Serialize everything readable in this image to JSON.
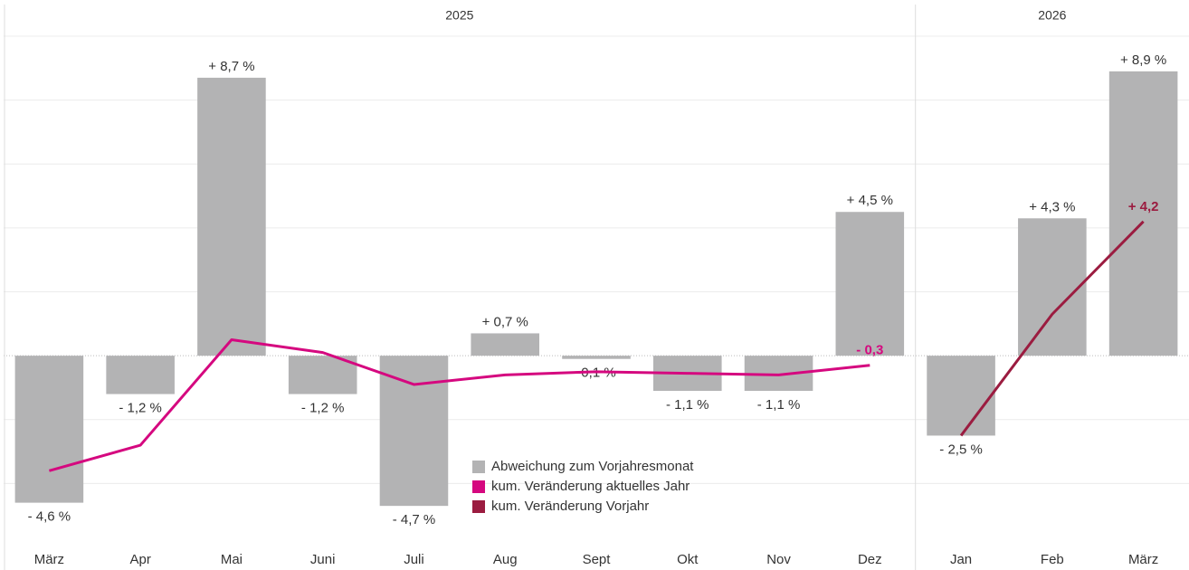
{
  "chart_data": {
    "type": "bar",
    "groups": [
      {
        "label": "2025",
        "span": 10
      },
      {
        "label": "2026",
        "span": 3
      }
    ],
    "categories": [
      "März",
      "Apr",
      "Mai",
      "Juni",
      "Juli",
      "Aug",
      "Sept",
      "Okt",
      "Nov",
      "Dez",
      "Jan",
      "Feb",
      "März"
    ],
    "series": [
      {
        "name": "Abweichung zum Vorjahresmonat",
        "type": "bar",
        "color": "#b3b3b4",
        "values": [
          -4.6,
          -1.2,
          8.7,
          -1.2,
          -4.7,
          0.7,
          -0.1,
          -1.1,
          -1.1,
          4.5,
          -2.5,
          4.3,
          8.9
        ],
        "value_labels": [
          "- 4,6 %",
          "- 1,2 %",
          "+ 8,7 %",
          "- 1,2 %",
          "- 4,7 %",
          "+ 0,7 %",
          "-0,1 %",
          "- 1,1 %",
          "- 1,1 %",
          "+ 4,5 %",
          "- 2,5 %",
          "+ 4,3 %",
          "+ 8,9 %"
        ]
      },
      {
        "name": "kum. Veränderung aktuelles Jahr",
        "type": "line",
        "color": "#d5087f",
        "values": [
          -3.6,
          -2.8,
          0.5,
          0.1,
          -0.9,
          -0.6,
          -0.5,
          -0.55,
          -0.6,
          -0.3,
          null,
          null,
          null
        ],
        "value_labels": [
          null,
          null,
          null,
          null,
          null,
          null,
          null,
          null,
          null,
          "- 0,3",
          null,
          null,
          null
        ]
      },
      {
        "name": "kum. Veränderung Vorjahr",
        "type": "line",
        "color": "#9b1c40",
        "values": [
          null,
          null,
          null,
          null,
          null,
          null,
          null,
          null,
          null,
          null,
          -2.5,
          1.3,
          4.2
        ],
        "value_labels": [
          null,
          null,
          null,
          null,
          null,
          null,
          null,
          null,
          null,
          null,
          null,
          null,
          "+ 4,2"
        ]
      }
    ],
    "ylim": [
      -5.8,
      10
    ],
    "yticks": [
      -4,
      -2,
      0,
      2,
      4,
      6,
      8,
      10
    ],
    "grid": true
  }
}
